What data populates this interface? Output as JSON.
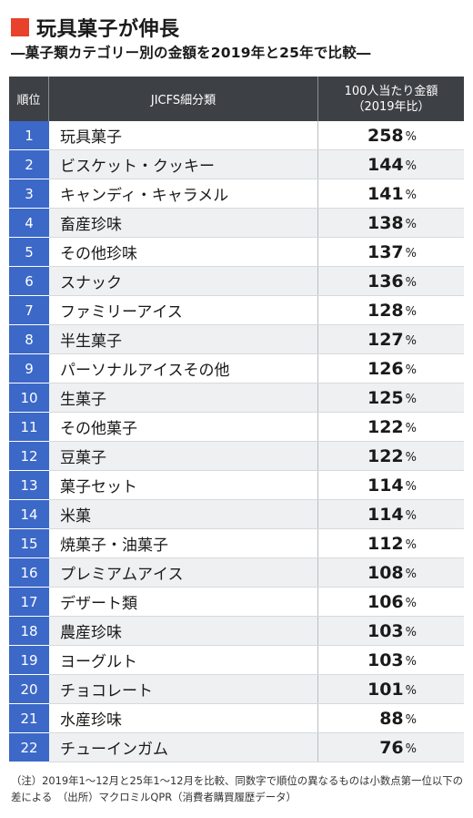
{
  "title": "玩具菓子が伸長",
  "subtitle": "―菓子類カテゴリー別の金額を2019年と25年で比較―",
  "table_header": {
    "rank": "順位",
    "name": "JICFS細分類",
    "value_line1": "100人当たり金額",
    "value_line2": "（2019年比）"
  },
  "unit": "%",
  "chart_data": {
    "type": "table",
    "columns": [
      "順位",
      "JICFS細分類",
      "100人当たり金額（2019年比）"
    ],
    "rows": [
      {
        "rank": "1",
        "name": "玩具菓子",
        "value": "258"
      },
      {
        "rank": "2",
        "name": "ビスケット・クッキー",
        "value": "144"
      },
      {
        "rank": "3",
        "name": "キャンディ・キャラメル",
        "value": "141"
      },
      {
        "rank": "4",
        "name": "畜産珍味",
        "value": "138"
      },
      {
        "rank": "5",
        "name": "その他珍味",
        "value": "137"
      },
      {
        "rank": "6",
        "name": "スナック",
        "value": "136"
      },
      {
        "rank": "7",
        "name": "ファミリーアイス",
        "value": "128"
      },
      {
        "rank": "8",
        "name": "半生菓子",
        "value": "127"
      },
      {
        "rank": "9",
        "name": "パーソナルアイスその他",
        "value": "126"
      },
      {
        "rank": "10",
        "name": "生菓子",
        "value": "125"
      },
      {
        "rank": "11",
        "name": "その他菓子",
        "value": "122"
      },
      {
        "rank": "12",
        "name": "豆菓子",
        "value": "122"
      },
      {
        "rank": "13",
        "name": "菓子セット",
        "value": "114"
      },
      {
        "rank": "14",
        "name": "米菓",
        "value": "114"
      },
      {
        "rank": "15",
        "name": "焼菓子・油菓子",
        "value": "112"
      },
      {
        "rank": "16",
        "name": "プレミアムアイス",
        "value": "108"
      },
      {
        "rank": "17",
        "name": "デザート類",
        "value": "106"
      },
      {
        "rank": "18",
        "name": "農産珍味",
        "value": "103"
      },
      {
        "rank": "19",
        "name": "ヨーグルト",
        "value": "103"
      },
      {
        "rank": "20",
        "name": "チョコレート",
        "value": "101"
      },
      {
        "rank": "21",
        "name": "水産珍味",
        "value": "88"
      },
      {
        "rank": "22",
        "name": "チューインガム",
        "value": "76"
      }
    ]
  },
  "note": "（注）2019年1～12月と25年1～12月を比較、同数字で順位の異なるものは小数点第一位以下の差による　（出所）マクロミルQPR（消費者購買履歴データ）",
  "colors": {
    "accent": "#e8412c",
    "header_bg": "#3d4146",
    "rank_bg": "#3c68c8",
    "stripe": "#eef0f2"
  }
}
